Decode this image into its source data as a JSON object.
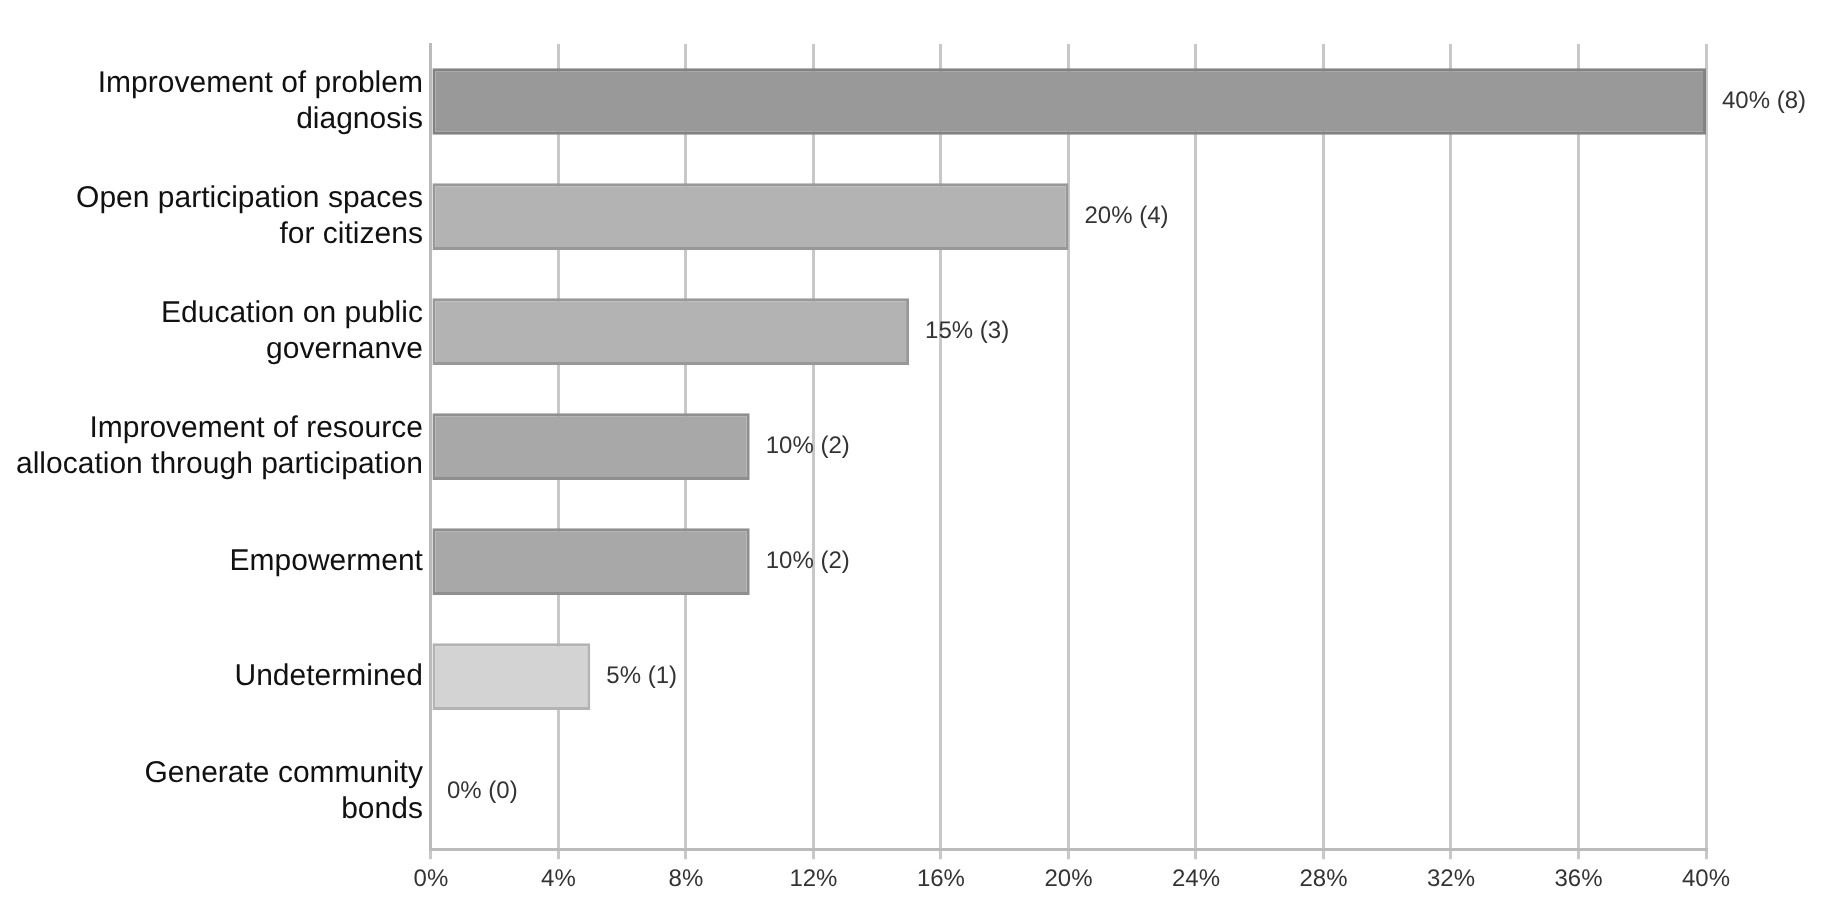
{
  "chart_data": {
    "type": "bar",
    "orientation": "horizontal",
    "categories": [
      "Improvement of problem\ndiagnosis",
      "Open participation spaces\nfor citizens",
      "Education on public\ngovernanve",
      "Improvement of resource\nallocation through participation",
      "Empowerment",
      "Undetermined",
      "Generate community\nbonds"
    ],
    "values": [
      40,
      20,
      15,
      10,
      10,
      5,
      0
    ],
    "colors": [
      "#999999",
      "#b3b3b3",
      "#b3b3b3",
      "#a8a8a8",
      "#a8a8a8",
      "#d3d3d3",
      "#b3b3b3"
    ],
    "value_labels": [
      "40% (8)",
      "20% (4)",
      "15% (3)",
      "10% (2)",
      "10% (2)",
      "5% (1)",
      "0% (0)"
    ],
    "xlim": [
      0,
      40
    ],
    "xticks": [
      {
        "value": 0,
        "label": "0%"
      },
      {
        "value": 4,
        "label": "4%"
      },
      {
        "value": 8,
        "label": "8%"
      },
      {
        "value": 12,
        "label": "12%"
      },
      {
        "value": 16,
        "label": "16%"
      },
      {
        "value": 20,
        "label": "20%"
      },
      {
        "value": 24,
        "label": "24%"
      },
      {
        "value": 28,
        "label": "28%"
      },
      {
        "value": 32,
        "label": "32%"
      },
      {
        "value": 36,
        "label": "36%"
      },
      {
        "value": 40,
        "label": "40%"
      }
    ],
    "grid": "x",
    "legend": false
  }
}
